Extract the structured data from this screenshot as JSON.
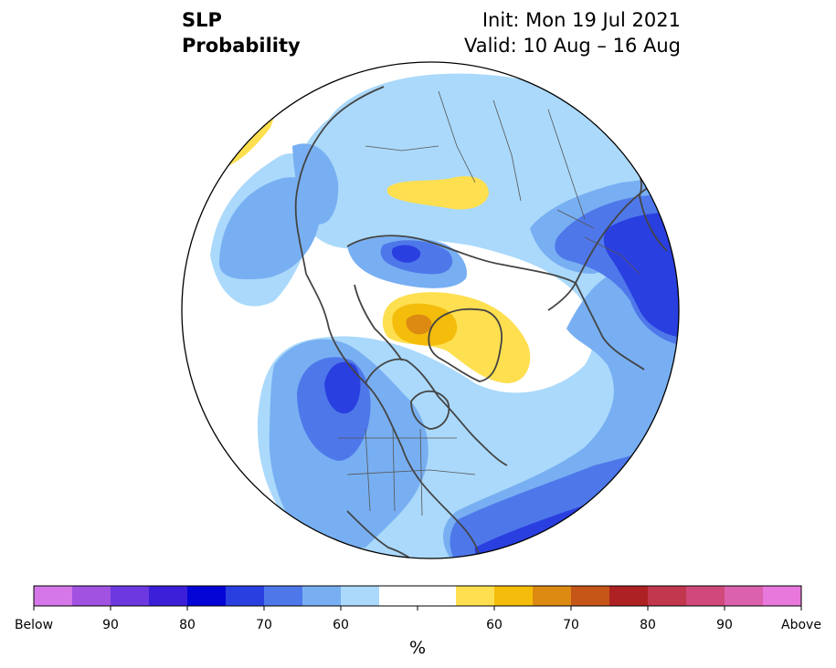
{
  "title": {
    "line1": "SLP",
    "line2": "Probability",
    "init": "Init: Mon 19 Jul 2021",
    "valid": "Valid: 10 Aug – 16 Aug"
  },
  "colorbar": {
    "units": "%",
    "colors": [
      "#d577e9",
      "#a252e1",
      "#6d38e0",
      "#3b1fd8",
      "#0404d6",
      "#2a3fe0",
      "#4e78ea",
      "#78aff2",
      "#aad9fb",
      "#ffffff",
      "#ffffff",
      "#fedf50",
      "#f4bd0b",
      "#dc8a12",
      "#c65518",
      "#ae2122",
      "#c1374e",
      "#d0497a",
      "#db61ad",
      "#e878dc"
    ],
    "tick_labels": [
      "Below",
      "90",
      "80",
      "70",
      "60",
      "",
      "60",
      "70",
      "80",
      "90",
      "Above"
    ]
  },
  "map": {
    "colors": {
      "below_50": "#aad9fb",
      "below_60": "#78aff2",
      "below_70": "#4e78ea",
      "below_80": "#2a3fe0",
      "above_50": "#fedf50",
      "above_60": "#f4bd0b",
      "above_70": "#dc8a12",
      "coast": "#444444",
      "border": "#555555"
    }
  }
}
